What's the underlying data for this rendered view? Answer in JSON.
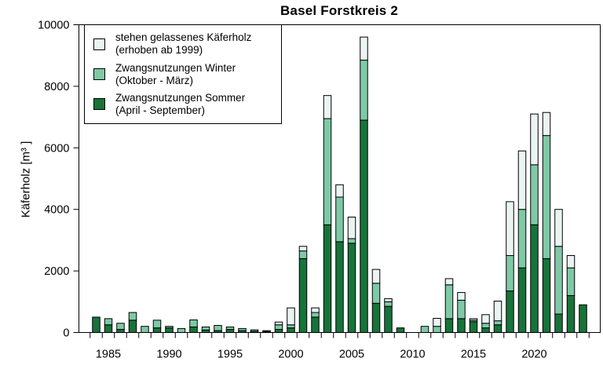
{
  "colors": {
    "sommer": "#177339",
    "winter": "#7FC9A6",
    "stehen": "#EAF5F3",
    "axis": "#000000",
    "background": "#FFFFFF"
  },
  "legend": {
    "items": [
      {
        "line1": "stehen gelassenes Käferholz",
        "line2": "(erhoben ab 1999)",
        "color_key": "stehen"
      },
      {
        "line1": "Zwangsnutzungen Winter",
        "line2": "(Oktober - März)",
        "color_key": "winter"
      },
      {
        "line1": "Zwangsnutzungen Sommer",
        "line2": "(April - September)",
        "color_key": "sommer"
      }
    ]
  },
  "chart_data": {
    "type": "bar",
    "stacked": true,
    "title": "Basel Forstkreis 2",
    "xlabel": "",
    "ylabel": "Käferholz [m³ ]",
    "ylim": [
      0,
      10000
    ],
    "ytick_interval": 2000,
    "ytick_labels": [
      "0",
      "2000",
      "4000",
      "6000",
      "8000",
      "10000"
    ],
    "x_labeled_ticks": [
      1985,
      1990,
      1995,
      2000,
      2005,
      2010,
      2015,
      2020
    ],
    "grid": false,
    "legend_position": "top-left-inside",
    "categories": [
      1984,
      1985,
      1986,
      1987,
      1988,
      1989,
      1990,
      1991,
      1992,
      1993,
      1994,
      1995,
      1996,
      1997,
      1998,
      1999,
      2000,
      2001,
      2002,
      2003,
      2004,
      2005,
      2006,
      2007,
      2008,
      2009,
      2010,
      2011,
      2012,
      2013,
      2014,
      2015,
      2016,
      2017,
      2018,
      2019,
      2020,
      2021,
      2022,
      2023,
      2024
    ],
    "series": [
      {
        "name": "Zwangsnutzungen Sommer (April - September)",
        "color_key": "sommer",
        "values": [
          500,
          250,
          100,
          400,
          0,
          150,
          150,
          0,
          180,
          80,
          60,
          100,
          60,
          40,
          30,
          100,
          150,
          2400,
          500,
          3500,
          2950,
          2900,
          6900,
          950,
          850,
          150,
          0,
          0,
          0,
          450,
          450,
          350,
          150,
          250,
          1350,
          2100,
          3500,
          2400,
          600,
          1200,
          900
        ]
      },
      {
        "name": "Zwangsnutzungen Winter (Oktober - März)",
        "color_key": "winter",
        "values": [
          0,
          200,
          200,
          250,
          200,
          250,
          50,
          130,
          230,
          100,
          170,
          80,
          70,
          45,
          30,
          150,
          100,
          250,
          150,
          3450,
          1450,
          150,
          1950,
          650,
          150,
          0,
          0,
          200,
          200,
          1100,
          600,
          50,
          150,
          130,
          1150,
          1900,
          1950,
          4000,
          2200,
          900,
          0
        ]
      },
      {
        "name": "stehen gelassenes Käferholz (erhoben ab 1999)",
        "color_key": "stehen",
        "values": [
          0,
          0,
          0,
          0,
          0,
          0,
          0,
          0,
          0,
          0,
          0,
          0,
          0,
          0,
          0,
          90,
          550,
          150,
          150,
          750,
          400,
          700,
          750,
          450,
          100,
          0,
          0,
          0,
          260,
          200,
          250,
          50,
          280,
          640,
          1750,
          1900,
          1650,
          750,
          1200,
          400,
          0
        ]
      }
    ]
  }
}
